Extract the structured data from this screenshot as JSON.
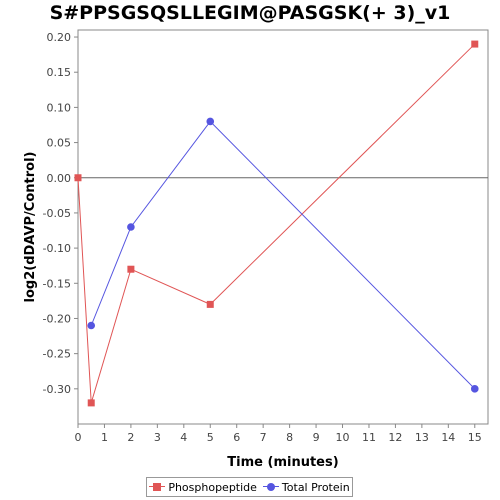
{
  "chart_data": {
    "type": "line",
    "title": "S#PPSGSQSLLEGIM@PASGSK(+ 3)_v1",
    "xlabel": "Time (minutes)",
    "ylabel": "log2(dDAVP/Control)",
    "xlim": [
      0,
      15.5
    ],
    "ylim": [
      -0.35,
      0.21
    ],
    "xticks": [
      0,
      1,
      2,
      3,
      4,
      5,
      6,
      7,
      8,
      9,
      10,
      11,
      12,
      13,
      14,
      15
    ],
    "yticks": [
      -0.3,
      -0.25,
      -0.2,
      -0.15,
      -0.1,
      -0.05,
      0.0,
      0.05,
      0.1,
      0.15,
      0.2
    ],
    "ytick_labels": [
      "-0.30",
      "-0.25",
      "-0.20",
      "-0.15",
      "-0.10",
      "-0.05",
      "0.00",
      "0.05",
      "0.10",
      "0.15",
      "0.20"
    ],
    "zero_line": true,
    "grid": false,
    "legend_position": "bottom",
    "series": [
      {
        "name": "Phosphopeptide",
        "color": "#e05555",
        "marker": "square",
        "x": [
          0,
          0.5,
          2,
          5,
          15
        ],
        "y": [
          0.0,
          -0.32,
          -0.13,
          -0.18,
          0.19
        ]
      },
      {
        "name": "Total Protein",
        "color": "#5555e0",
        "marker": "circle",
        "x": [
          0.5,
          2,
          5,
          15
        ],
        "y": [
          -0.21,
          -0.07,
          0.08,
          -0.3
        ]
      }
    ]
  }
}
